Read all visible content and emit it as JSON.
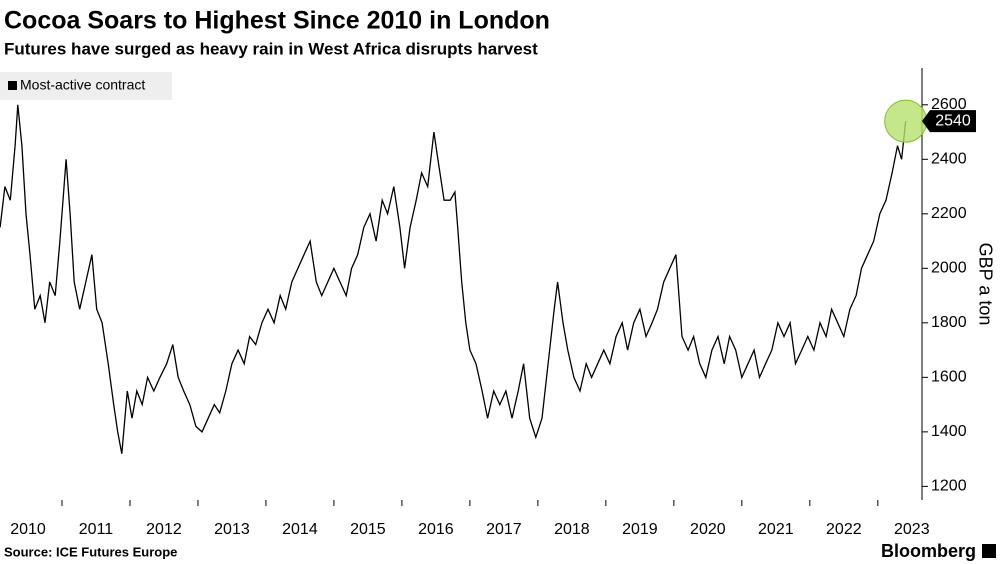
{
  "chart_data": {
    "type": "line",
    "title": "Cocoa Soars to Highest Since 2010 in London",
    "subtitle": "Futures have surged as heavy rain in West Africa disrupts harvest",
    "y_label": "GBP a ton",
    "source": "Source: ICE Futures Europe",
    "brand": "Bloomberg",
    "highlight_color": "#b5e26b",
    "x": [
      2010.09,
      2010.16,
      2010.24,
      2010.31,
      2010.35,
      2010.41,
      2010.47,
      2010.53,
      2010.6,
      2010.68,
      2010.75,
      2010.82,
      2010.9,
      2010.97,
      2011.06,
      2011.12,
      2011.18,
      2011.26,
      2011.35,
      2011.44,
      2011.51,
      2011.59,
      2011.68,
      2011.76,
      2011.82,
      2011.88,
      2011.96,
      2012.03,
      2012.1,
      2012.18,
      2012.26,
      2012.35,
      2012.44,
      2012.54,
      2012.63,
      2012.71,
      2012.79,
      2012.88,
      2012.97,
      2013.06,
      2013.15,
      2013.24,
      2013.32,
      2013.41,
      2013.5,
      2013.59,
      2013.68,
      2013.76,
      2013.85,
      2013.94,
      2014.03,
      2014.12,
      2014.21,
      2014.29,
      2014.38,
      2014.47,
      2014.56,
      2014.65,
      2014.74,
      2014.82,
      2014.91,
      2015.0,
      2015.09,
      2015.18,
      2015.26,
      2015.35,
      2015.44,
      2015.53,
      2015.62,
      2015.71,
      2015.79,
      2015.88,
      2015.97,
      2016.04,
      2016.12,
      2016.21,
      2016.29,
      2016.38,
      2016.47,
      2016.53,
      2016.62,
      2016.71,
      2016.78,
      2016.82,
      2016.88,
      2016.94,
      2017.0,
      2017.09,
      2017.18,
      2017.26,
      2017.35,
      2017.44,
      2017.53,
      2017.62,
      2017.71,
      2017.79,
      2017.88,
      2017.97,
      2018.06,
      2018.15,
      2018.24,
      2018.29,
      2018.37,
      2018.44,
      2018.53,
      2018.62,
      2018.71,
      2018.79,
      2018.88,
      2018.97,
      2019.06,
      2019.15,
      2019.24,
      2019.32,
      2019.41,
      2019.5,
      2019.59,
      2019.68,
      2019.76,
      2019.85,
      2019.94,
      2020.03,
      2020.12,
      2020.21,
      2020.29,
      2020.38,
      2020.47,
      2020.56,
      2020.65,
      2020.74,
      2020.82,
      2020.91,
      2021.0,
      2021.09,
      2021.18,
      2021.26,
      2021.35,
      2021.44,
      2021.53,
      2021.62,
      2021.71,
      2021.79,
      2021.88,
      2021.97,
      2022.06,
      2022.15,
      2022.24,
      2022.32,
      2022.41,
      2022.5,
      2022.59,
      2022.68,
      2022.76,
      2022.85,
      2022.94,
      2023.03,
      2023.12,
      2023.21,
      2023.29,
      2023.35,
      2023.41
    ],
    "series": [
      {
        "name": "Most-active contract",
        "color": "#000000",
        "values": [
          2150,
          2300,
          2250,
          2450,
          2600,
          2450,
          2200,
          2050,
          1850,
          1900,
          1800,
          1950,
          1900,
          2100,
          2400,
          2200,
          1950,
          1850,
          1950,
          2050,
          1850,
          1800,
          1650,
          1500,
          1400,
          1320,
          1550,
          1450,
          1550,
          1500,
          1600,
          1550,
          1600,
          1650,
          1720,
          1600,
          1550,
          1500,
          1420,
          1400,
          1450,
          1500,
          1470,
          1550,
          1650,
          1700,
          1650,
          1750,
          1720,
          1800,
          1850,
          1800,
          1900,
          1850,
          1950,
          2000,
          2050,
          2100,
          1950,
          1900,
          1950,
          2000,
          1950,
          1900,
          2000,
          2050,
          2150,
          2200,
          2100,
          2250,
          2200,
          2300,
          2150,
          2000,
          2150,
          2250,
          2350,
          2300,
          2500,
          2400,
          2250,
          2250,
          2280,
          2150,
          1950,
          1800,
          1700,
          1650,
          1550,
          1450,
          1550,
          1500,
          1550,
          1450,
          1550,
          1650,
          1450,
          1380,
          1450,
          1650,
          1850,
          1950,
          1800,
          1700,
          1600,
          1550,
          1650,
          1600,
          1650,
          1700,
          1650,
          1750,
          1800,
          1700,
          1800,
          1850,
          1750,
          1800,
          1850,
          1950,
          2000,
          2050,
          1750,
          1700,
          1750,
          1650,
          1600,
          1700,
          1750,
          1650,
          1750,
          1700,
          1600,
          1650,
          1700,
          1600,
          1650,
          1700,
          1800,
          1750,
          1800,
          1650,
          1700,
          1750,
          1700,
          1800,
          1750,
          1850,
          1800,
          1750,
          1850,
          1900,
          2000,
          2050,
          2100,
          2200,
          2250,
          2350,
          2450,
          2400,
          2540
        ]
      }
    ],
    "xlim": [
      2010,
      2023.65
    ],
    "xticks": [
      2010,
      2011,
      2012,
      2013,
      2014,
      2015,
      2016,
      2017,
      2018,
      2019,
      2020,
      2021,
      2022,
      2023
    ],
    "ylim": [
      1150,
      2735
    ],
    "yticks": [
      1200,
      1400,
      1600,
      1800,
      2000,
      2200,
      2400,
      2600
    ],
    "grid": false
  }
}
